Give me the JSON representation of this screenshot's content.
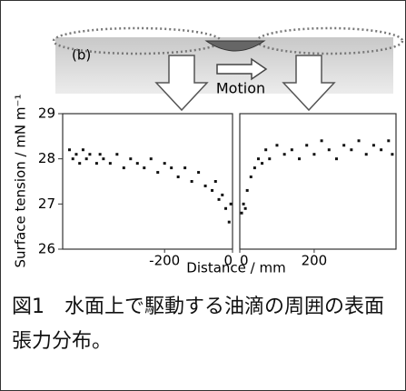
{
  "figure": {
    "label": "(b)",
    "motion": "Motion",
    "ylabel": "Surface tension / mN m⁻¹",
    "xlabel": "Distance / mm"
  },
  "chart_data": [
    {
      "type": "scatter",
      "color": "#111111",
      "x": [
        -480,
        -470,
        -460,
        -450,
        -440,
        -430,
        -420,
        -400,
        -390,
        -380,
        -360,
        -340,
        -320,
        -300,
        -280,
        -260,
        -240,
        -220,
        -200,
        -180,
        -160,
        -140,
        -120,
        -100,
        -80,
        -60,
        -50,
        -40,
        -30,
        -20,
        -10,
        -5
      ],
      "values": [
        28.2,
        28.0,
        28.1,
        27.9,
        28.2,
        28.0,
        28.1,
        27.9,
        28.1,
        28.0,
        27.9,
        28.1,
        27.8,
        28.0,
        27.9,
        27.8,
        28.0,
        27.7,
        27.9,
        27.8,
        27.6,
        27.8,
        27.5,
        27.7,
        27.4,
        27.3,
        27.5,
        27.1,
        27.2,
        26.9,
        26.6,
        27.0
      ],
      "xlim": [
        -500,
        0
      ],
      "ylim": [
        26,
        29
      ],
      "xticks": [
        -200,
        0
      ],
      "yticks": [
        26,
        27,
        28,
        29
      ]
    },
    {
      "type": "scatter",
      "color": "#111111",
      "x": [
        5,
        10,
        15,
        20,
        30,
        40,
        50,
        60,
        70,
        80,
        100,
        120,
        140,
        160,
        180,
        200,
        220,
        240,
        260,
        280,
        300,
        320,
        340,
        360,
        380,
        400,
        410
      ],
      "values": [
        26.8,
        27.0,
        26.9,
        27.3,
        27.6,
        27.8,
        28.0,
        27.9,
        28.2,
        28.0,
        28.3,
        28.1,
        28.2,
        28.0,
        28.3,
        28.1,
        28.4,
        28.2,
        28.0,
        28.3,
        28.2,
        28.4,
        28.1,
        28.3,
        28.2,
        28.4,
        28.1
      ],
      "xlim": [
        0,
        420
      ],
      "ylim": [
        26,
        29
      ],
      "xticks": [
        0,
        200
      ]
    }
  ],
  "caption": "図1　水面上で駆動する油滴の周囲の表面張力分布。"
}
